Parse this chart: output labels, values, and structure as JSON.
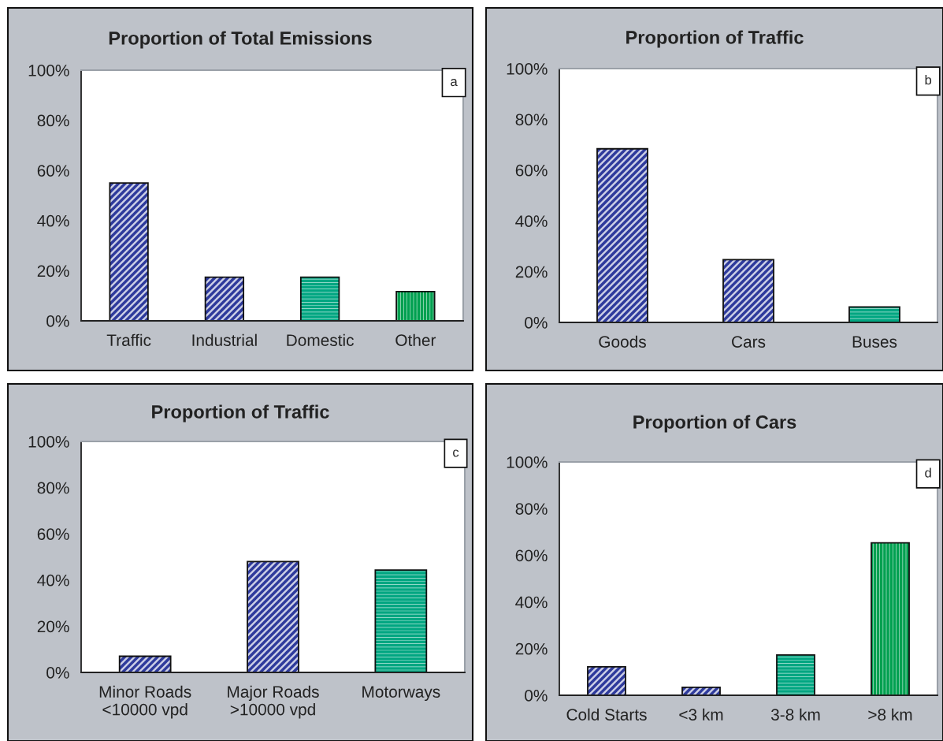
{
  "chart_data": [
    {
      "type": "bar",
      "title": "Proportion of Total Emissions",
      "categories": [
        "Traffic",
        "Industrial",
        "Domestic",
        "Other"
      ],
      "values": [
        55,
        17.4,
        17.4,
        11.7
      ],
      "colors": [
        "#2e3a9c",
        "#2e3a9c",
        "#00a681",
        "#00a050"
      ],
      "ylim": [
        0,
        100
      ],
      "yticks": [
        {
          "value": 0,
          "label": "0%"
        },
        {
          "value": 20,
          "label": "20%"
        },
        {
          "value": 40,
          "label": "40%"
        },
        {
          "value": 60,
          "label": "60%"
        },
        {
          "value": 80,
          "label": "80%"
        },
        {
          "value": 100,
          "label": "100%"
        }
      ],
      "annotations": [
        "a"
      ]
    },
    {
      "type": "bar",
      "title": "Proportion of Traffic",
      "categories": [
        "Goods",
        "Cars",
        "Buses"
      ],
      "values": [
        68.4,
        24.7,
        6.1
      ],
      "colors": [
        "#2e3a9c",
        "#2e3a9c",
        "#00a681"
      ],
      "ylim": [
        0,
        100
      ],
      "yticks": [
        {
          "value": 0,
          "label": "0%"
        },
        {
          "value": 20,
          "label": "20%"
        },
        {
          "value": 40,
          "label": "40%"
        },
        {
          "value": 60,
          "label": "60%"
        },
        {
          "value": 80,
          "label": "80%"
        },
        {
          "value": 100,
          "label": "100%"
        }
      ],
      "annotations": [
        "b"
      ]
    },
    {
      "type": "bar",
      "title": "Proportion of Traffic",
      "categories": [
        "Minor Roads\n<10000 vpd",
        "Major Roads\n>10000 vpd",
        "Motorways"
      ],
      "values": [
        7,
        48,
        44.3
      ],
      "colors": [
        "#2e3a9c",
        "#2e3a9c",
        "#00a681"
      ],
      "ylim": [
        0,
        100
      ],
      "yticks": [
        {
          "value": 0,
          "label": "0%"
        },
        {
          "value": 20,
          "label": "20%"
        },
        {
          "value": 40,
          "label": "40%"
        },
        {
          "value": 60,
          "label": "60%"
        },
        {
          "value": 80,
          "label": "80%"
        },
        {
          "value": 100,
          "label": "100%"
        }
      ],
      "annotations": [
        "c"
      ]
    },
    {
      "type": "bar",
      "title": "Proportion of Cars",
      "categories": [
        "Cold Starts",
        "<3 km",
        "3-8 km",
        ">8 km"
      ],
      "values": [
        12.2,
        3.4,
        17.3,
        65.3
      ],
      "colors": [
        "#2e3a9c",
        "#2e3a9c",
        "#00a681",
        "#00a050"
      ],
      "ylim": [
        0,
        100
      ],
      "yticks": [
        {
          "value": 0,
          "label": "0%"
        },
        {
          "value": 20,
          "label": "20%"
        },
        {
          "value": 40,
          "label": "40%"
        },
        {
          "value": 60,
          "label": "60%"
        },
        {
          "value": 80,
          "label": "80%"
        },
        {
          "value": 100,
          "label": "100%"
        }
      ],
      "annotations": [
        "d"
      ]
    }
  ]
}
